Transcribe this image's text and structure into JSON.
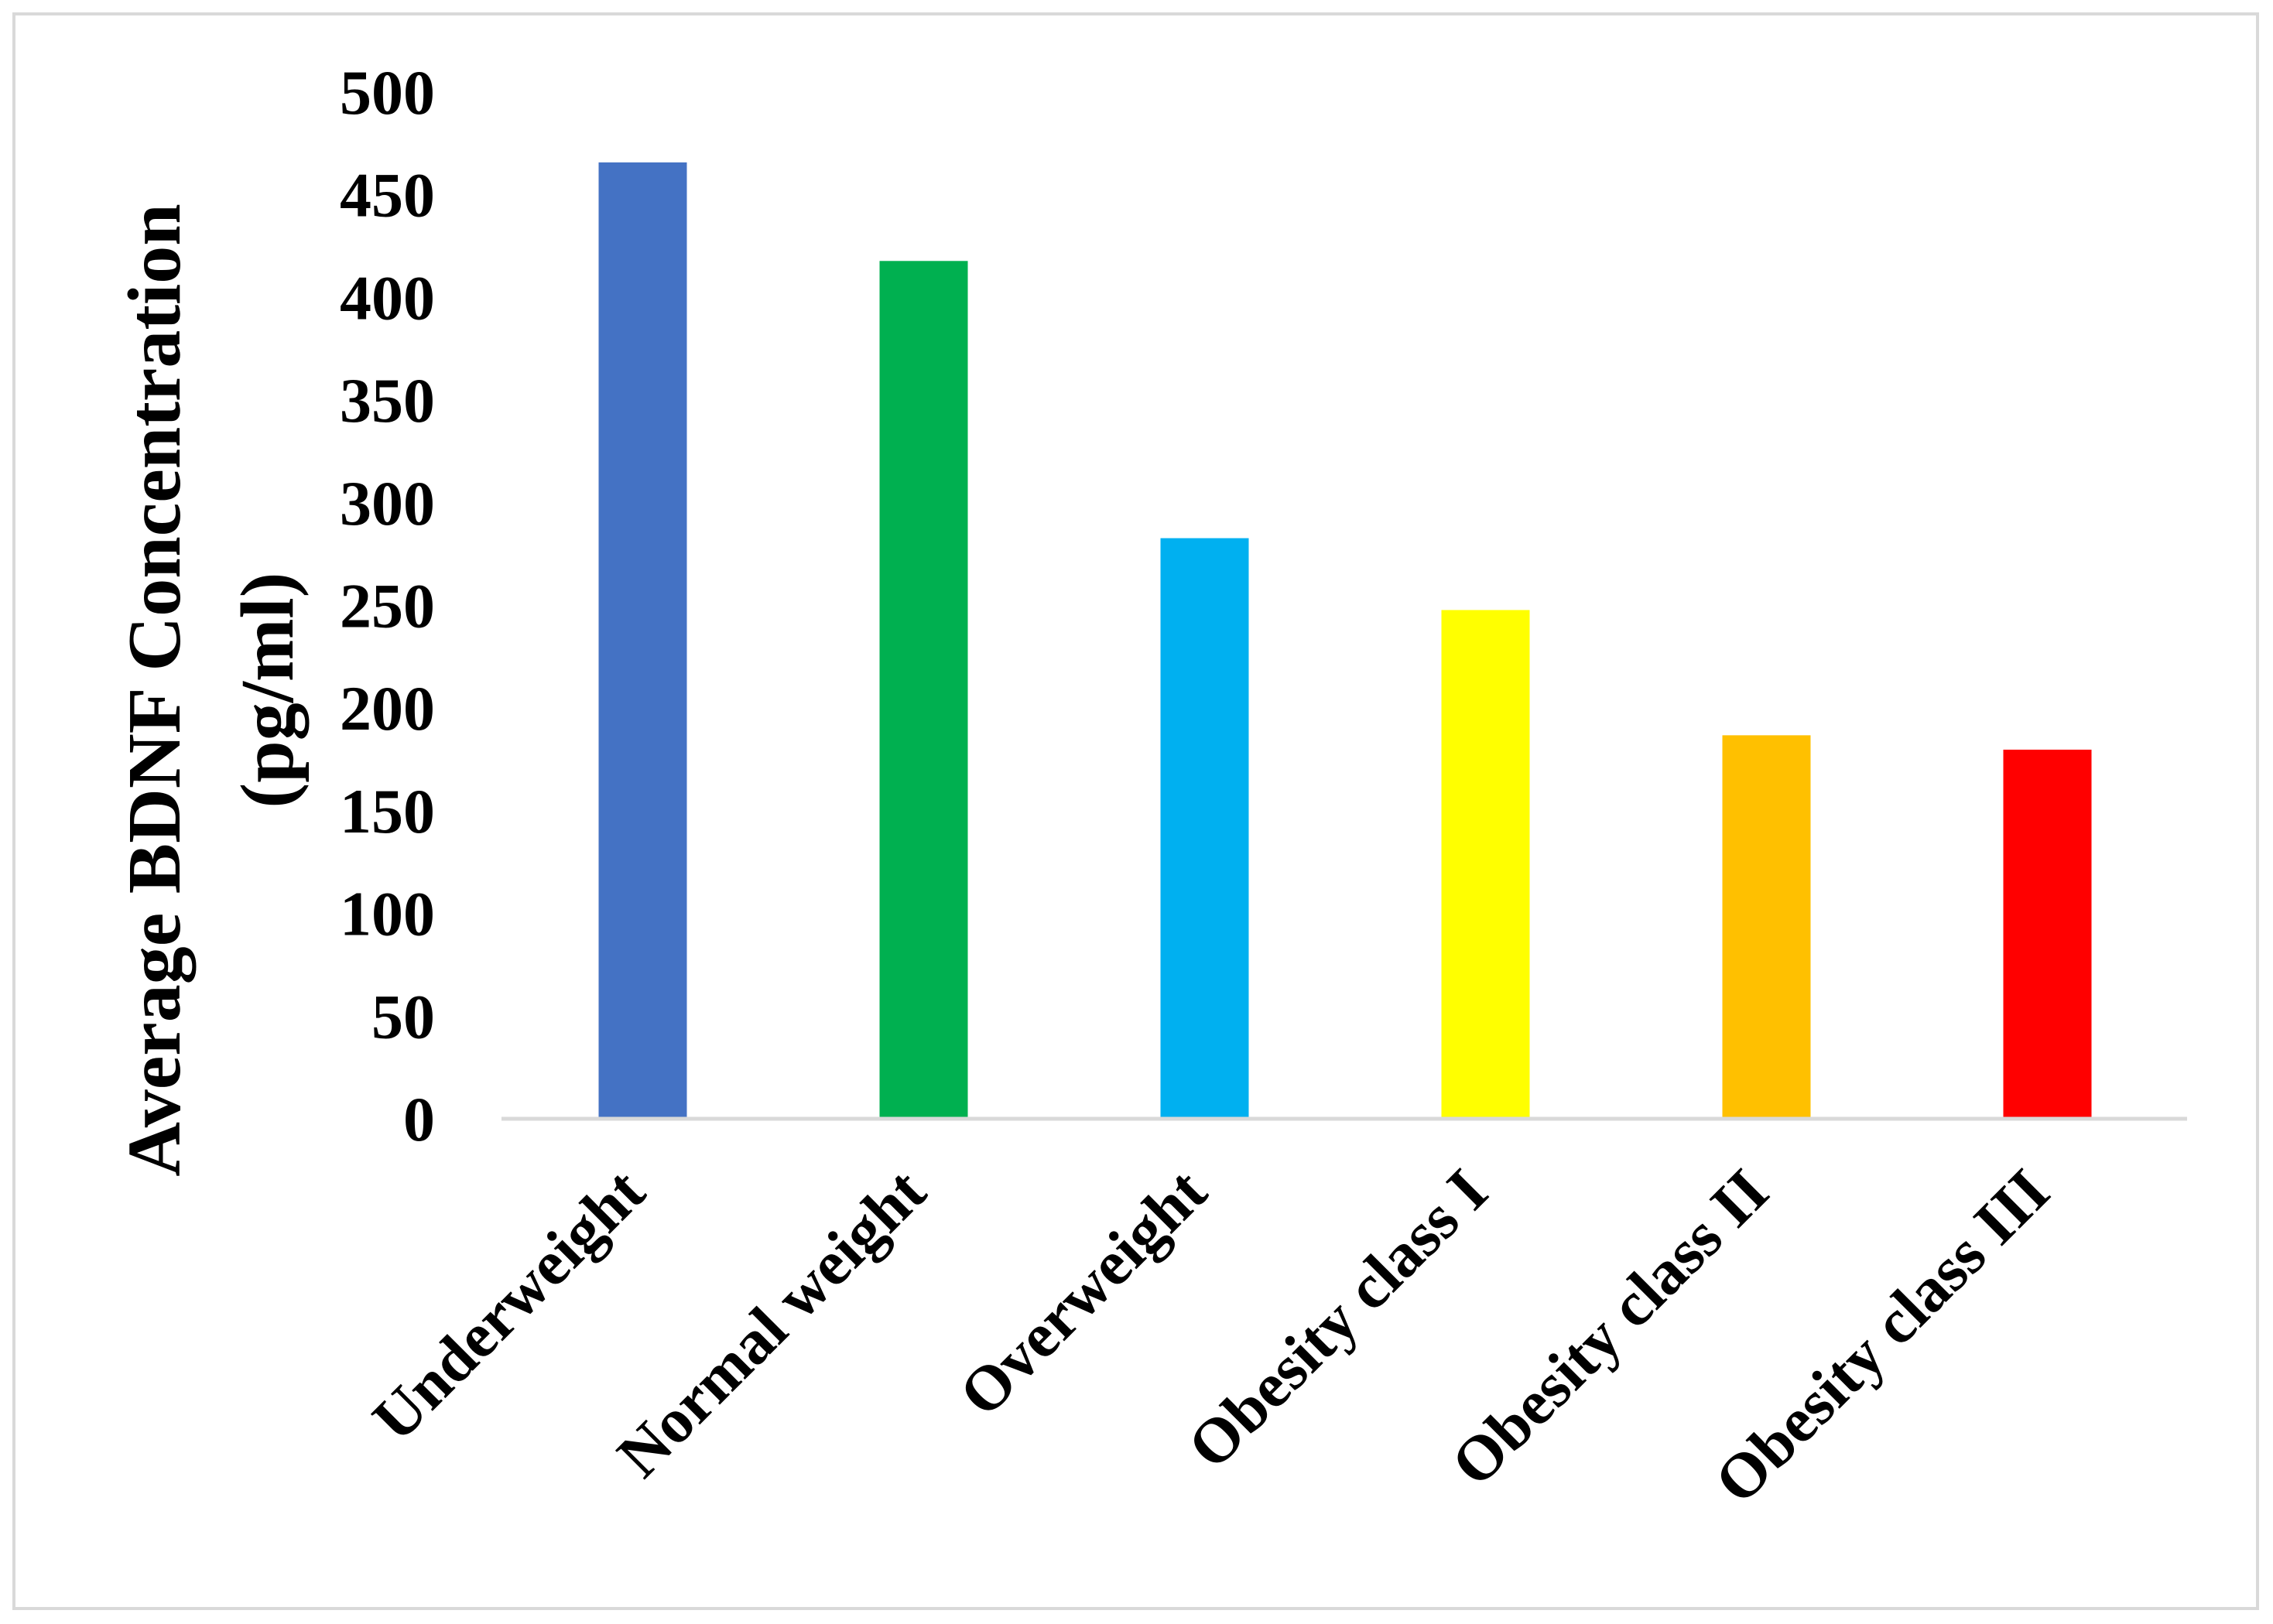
{
  "chart_data": {
    "type": "bar",
    "title": "",
    "xlabel": "",
    "ylabel_lines": [
      "Average BDNF Concentration",
      "(pg/ml)"
    ],
    "ylim": [
      0,
      500
    ],
    "yticks": [
      0,
      50,
      100,
      150,
      200,
      250,
      300,
      350,
      400,
      450,
      500
    ],
    "grid": false,
    "legend": "none",
    "categories": [
      "Underweight",
      "Normal weight",
      "Overweight",
      "Obesity class I",
      "Obesity class II",
      "Obesity class III"
    ],
    "values": [
      465,
      417,
      282,
      247,
      186,
      179
    ],
    "colors": [
      "#4472c4",
      "#00b050",
      "#00b0f0",
      "#ffff00",
      "#ffc000",
      "#ff0000"
    ],
    "axis_color": "#d9d9d9"
  }
}
